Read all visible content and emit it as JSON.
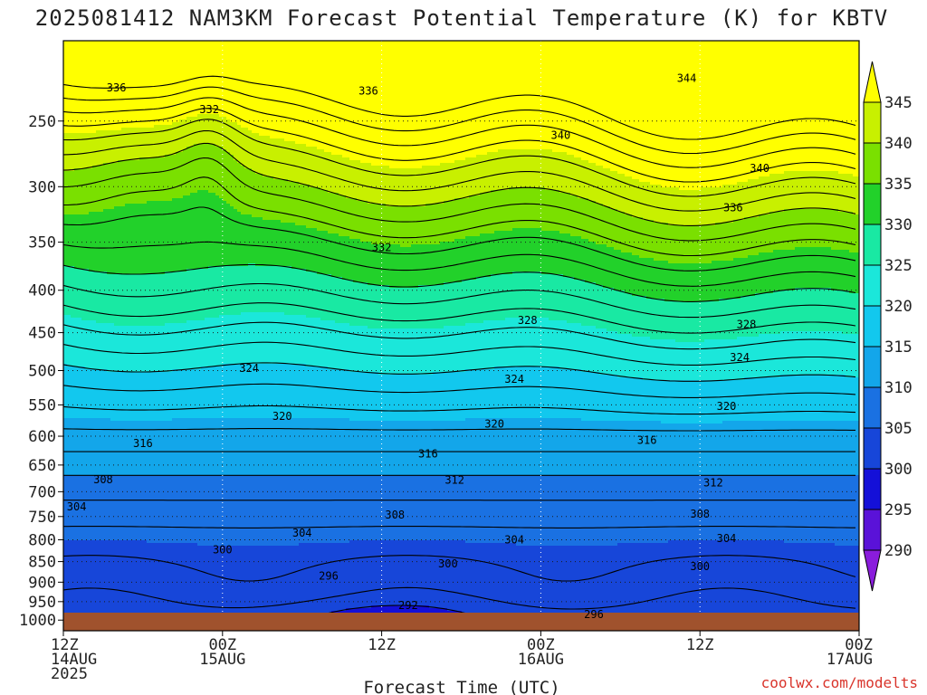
{
  "title": "2025081412 NAM3KM Forecast Potential Temperature (K) for KBTV",
  "credit": "coolwx.com/modelts",
  "chart_data": {
    "type": "heatmap",
    "title": "2025081412 NAM3KM Forecast Potential Temperature (K) for KBTV",
    "xlabel": "Forecast Time (UTC)",
    "ylabel": "",
    "x_ticks": [
      {
        "hour": 0,
        "lines": [
          "12Z",
          "14AUG",
          "2025"
        ]
      },
      {
        "hour": 12,
        "lines": [
          "00Z",
          "15AUG"
        ]
      },
      {
        "hour": 24,
        "lines": [
          "12Z"
        ]
      },
      {
        "hour": 36,
        "lines": [
          "00Z",
          "16AUG"
        ]
      },
      {
        "hour": 48,
        "lines": [
          "12Z"
        ]
      },
      {
        "hour": 60,
        "lines": [
          "00Z",
          "17AUG"
        ]
      }
    ],
    "xlim_hours": [
      0,
      60
    ],
    "y_ticks": [
      250,
      300,
      350,
      400,
      450,
      500,
      550,
      600,
      650,
      700,
      750,
      800,
      850,
      900,
      950,
      1000
    ],
    "ylim_hPa": [
      1030,
      200
    ],
    "y_scale": "log",
    "colorbar": {
      "ticks": [
        345,
        340,
        335,
        330,
        325,
        320,
        315,
        310,
        305,
        300,
        295,
        290
      ],
      "bands": [
        {
          "from": 345,
          "to": 350,
          "color": "#ffff00"
        },
        {
          "from": 340,
          "to": 345,
          "color": "#c8f000"
        },
        {
          "from": 335,
          "to": 340,
          "color": "#7ae000"
        },
        {
          "from": 330,
          "to": 335,
          "color": "#22d12a"
        },
        {
          "from": 325,
          "to": 330,
          "color": "#19e9a3"
        },
        {
          "from": 320,
          "to": 325,
          "color": "#1be7da"
        },
        {
          "from": 315,
          "to": 320,
          "color": "#12c8ee"
        },
        {
          "from": 310,
          "to": 315,
          "color": "#13a6ea"
        },
        {
          "from": 305,
          "to": 310,
          "color": "#1a71e2"
        },
        {
          "from": 300,
          "to": 305,
          "color": "#1746d9"
        },
        {
          "from": 295,
          "to": 300,
          "color": "#1410d8"
        },
        {
          "from": 290,
          "to": 295,
          "color": "#5a12d8"
        },
        {
          "from": 285,
          "to": 290,
          "color": "#8a1cdc"
        }
      ]
    },
    "ground_color": "#a0522d",
    "contour_labels": [
      {
        "value": "336",
        "hour": 4.0,
        "p": 228
      },
      {
        "value": "336",
        "hour": 23.0,
        "p": 230
      },
      {
        "value": "344",
        "hour": 47.0,
        "p": 222
      },
      {
        "value": "332",
        "hour": 11.0,
        "p": 242
      },
      {
        "value": "340",
        "hour": 37.5,
        "p": 260
      },
      {
        "value": "340",
        "hour": 52.5,
        "p": 285
      },
      {
        "value": "336",
        "hour": 50.5,
        "p": 318
      },
      {
        "value": "332",
        "hour": 24.0,
        "p": 355
      },
      {
        "value": "328",
        "hour": 35.0,
        "p": 435
      },
      {
        "value": "328",
        "hour": 51.5,
        "p": 440
      },
      {
        "value": "324",
        "hour": 14.0,
        "p": 497
      },
      {
        "value": "324",
        "hour": 51.0,
        "p": 482
      },
      {
        "value": "324",
        "hour": 34.0,
        "p": 512
      },
      {
        "value": "320",
        "hour": 16.5,
        "p": 568
      },
      {
        "value": "320",
        "hour": 50.0,
        "p": 552
      },
      {
        "value": "320",
        "hour": 32.5,
        "p": 580
      },
      {
        "value": "316",
        "hour": 6.0,
        "p": 612
      },
      {
        "value": "316",
        "hour": 27.5,
        "p": 630
      },
      {
        "value": "316",
        "hour": 44.0,
        "p": 607
      },
      {
        "value": "312",
        "hour": 29.5,
        "p": 678
      },
      {
        "value": "312",
        "hour": 49.0,
        "p": 683
      },
      {
        "value": "308",
        "hour": 3.0,
        "p": 677
      },
      {
        "value": "308",
        "hour": 25.0,
        "p": 747
      },
      {
        "value": "308",
        "hour": 48.0,
        "p": 745
      },
      {
        "value": "304",
        "hour": 1.0,
        "p": 730
      },
      {
        "value": "304",
        "hour": 18.0,
        "p": 785
      },
      {
        "value": "304",
        "hour": 34.0,
        "p": 800
      },
      {
        "value": "304",
        "hour": 50.0,
        "p": 797
      },
      {
        "value": "300",
        "hour": 12.0,
        "p": 823
      },
      {
        "value": "300",
        "hour": 29.0,
        "p": 855
      },
      {
        "value": "300",
        "hour": 48.0,
        "p": 862
      },
      {
        "value": "296",
        "hour": 20.0,
        "p": 885
      },
      {
        "value": "296",
        "hour": 40.0,
        "p": 985
      },
      {
        "value": "292",
        "hour": 26.0,
        "p": 960
      }
    ]
  }
}
